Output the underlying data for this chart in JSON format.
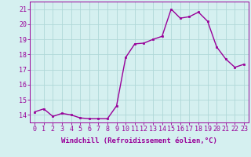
{
  "x": [
    0,
    1,
    2,
    3,
    4,
    5,
    6,
    7,
    8,
    9,
    10,
    11,
    12,
    13,
    14,
    15,
    16,
    17,
    18,
    19,
    20,
    21,
    22,
    23
  ],
  "y": [
    14.2,
    14.4,
    13.9,
    14.1,
    14.0,
    13.8,
    13.75,
    13.75,
    13.75,
    14.6,
    17.8,
    18.7,
    18.75,
    19.0,
    19.2,
    21.0,
    20.4,
    20.5,
    20.8,
    20.2,
    18.5,
    17.7,
    17.15,
    17.35
  ],
  "color": "#990099",
  "bg_color": "#d5f0f0",
  "grid_color": "#afd8d8",
  "xlabel": "Windchill (Refroidissement éolien,°C)",
  "ylim": [
    13.5,
    21.5
  ],
  "xlim": [
    -0.5,
    23.5
  ],
  "yticks": [
    14,
    15,
    16,
    17,
    18,
    19,
    20,
    21
  ],
  "xtick_labels": [
    "0",
    "1",
    "2",
    "3",
    "4",
    "5",
    "6",
    "7",
    "8",
    "9",
    "10",
    "11",
    "12",
    "13",
    "14",
    "15",
    "16",
    "17",
    "18",
    "19",
    "20",
    "21",
    "22",
    "23"
  ],
  "marker": "s",
  "markersize": 2.0,
  "linewidth": 1.0,
  "xlabel_fontsize": 6.5,
  "tick_fontsize": 6.0
}
